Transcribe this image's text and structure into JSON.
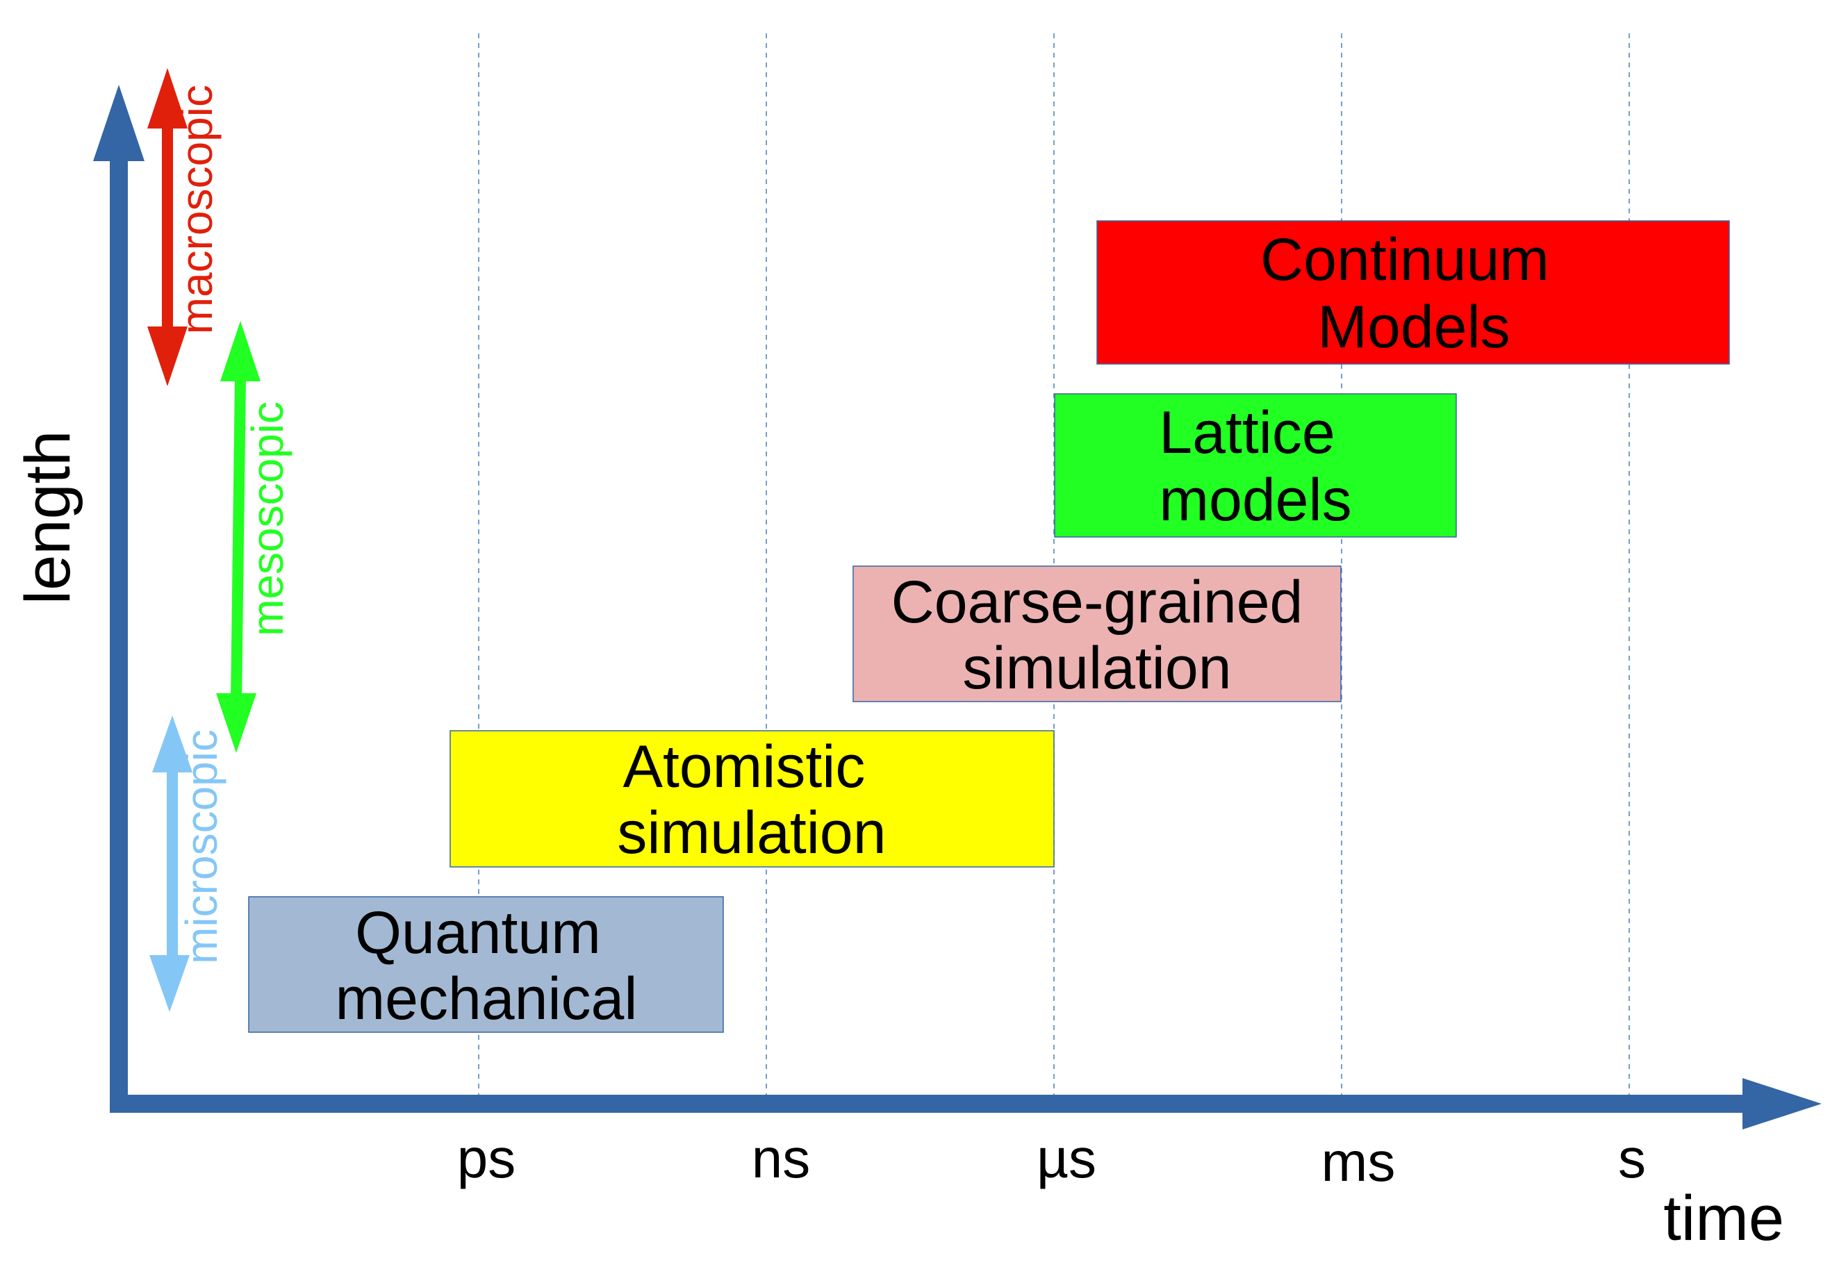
{
  "axes": {
    "x_label": "time",
    "y_label": "length",
    "color": "#3465a4",
    "gridline_color": "#729fcf",
    "ticks": [
      "ps",
      "ns",
      "µs",
      "ms",
      "s"
    ]
  },
  "scales": [
    {
      "label": "macroscopic",
      "color": "#e0200b"
    },
    {
      "label": "mesoscopic",
      "color": "#22ff22"
    },
    {
      "label": "microscopic",
      "color": "#84c7f7"
    }
  ],
  "boxes": [
    {
      "lines": [
        "Continuum",
        "Models"
      ],
      "color": "#ff0000"
    },
    {
      "lines": [
        "Lattice",
        "models"
      ],
      "color": "#22ff22"
    },
    {
      "lines": [
        "Coarse-grained",
        "simulation"
      ],
      "color": "#ecb2b2"
    },
    {
      "lines": [
        "Atomistic",
        "simulation"
      ],
      "color": "#ffff00"
    },
    {
      "lines": [
        "Quantum",
        "mechanical"
      ],
      "color": "#a3b9d3"
    }
  ]
}
